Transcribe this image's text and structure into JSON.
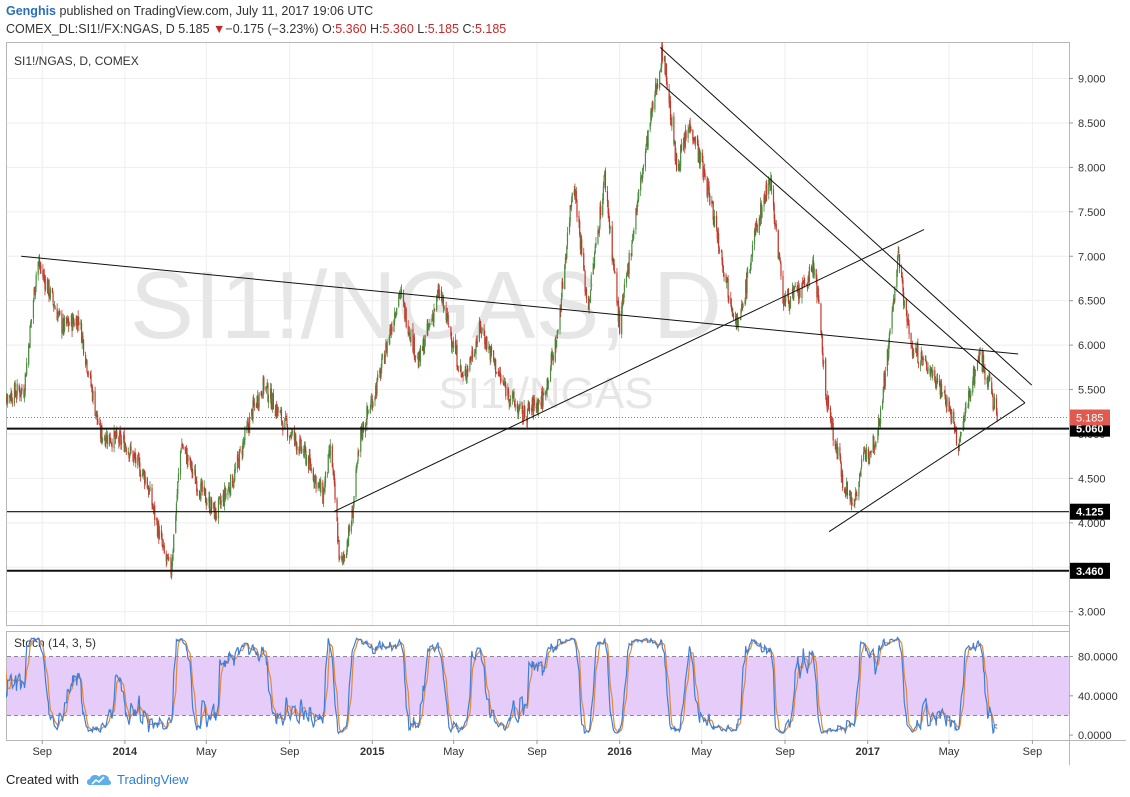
{
  "header": {
    "author": "Genghis",
    "published_text": "published on TradingView.com, July 11, 2017 19:06 UTC",
    "symbol": "COMEX_DL:SI1!/FX:NGAS, D",
    "last": "5.185",
    "change_arrow": "▼",
    "change": "−0.175 (−3.23%)",
    "o_label": "O:",
    "o_val": "5.360",
    "h_label": "H:",
    "h_val": "5.360",
    "l_label": "L:",
    "l_val": "5.185",
    "c_label": "C:",
    "c_val": "5.185"
  },
  "pane_title": "SI1!/NGAS, D, COMEX",
  "watermark": {
    "big": "SI1!/NGAS, D",
    "small": "SI1!/NGAS"
  },
  "stoch_title": "Stoch (14, 3, 5)",
  "footer": {
    "created_with": "Created with",
    "brand": "TradingView"
  },
  "colors": {
    "up": "#4a8c3f",
    "down": "#c0392b",
    "line": "#111111",
    "price_tag": "#e05a4f",
    "stoch_k": "#3f7fd6",
    "stoch_d": "#e4893b",
    "stoch_band": "#e3c6f7"
  },
  "chart_data": {
    "type": "candlestick",
    "price_axis": {
      "min": 2.85,
      "max": 9.4,
      "ticks": [
        "9.000",
        "8.500",
        "8.000",
        "7.500",
        "7.000",
        "6.500",
        "6.000",
        "5.500",
        "5.000",
        "4.500",
        "4.000",
        "3.500",
        "3.000"
      ]
    },
    "stoch_axis": {
      "min": -5,
      "max": 105,
      "ticks": [
        "80.0000",
        "40.0000",
        "0.0000"
      ],
      "upper_band": 80,
      "lower_band": 20
    },
    "x_ticks": [
      "Sep",
      "2014",
      "May",
      "Sep",
      "2015",
      "May",
      "Sep",
      "2016",
      "May",
      "Sep",
      "2017",
      "May",
      "Sep"
    ],
    "x_ticks_bold": [
      "2014",
      "2015",
      "2016",
      "2017"
    ],
    "last_price": "5.185",
    "horizontal_levels": [
      "5.060",
      "4.125",
      "3.460"
    ],
    "price_path": [
      [
        "2013-07-01",
        5.4
      ],
      [
        "2013-08-05",
        5.5
      ],
      [
        "2013-08-25",
        6.95
      ],
      [
        "2013-10-01",
        6.2
      ],
      [
        "2013-10-25",
        6.3
      ],
      [
        "2013-11-25",
        5.0
      ],
      [
        "2014-01-01",
        4.9
      ],
      [
        "2014-02-01",
        4.5
      ],
      [
        "2014-03-01",
        3.6
      ],
      [
        "2014-03-10",
        3.46
      ],
      [
        "2014-03-25",
        4.9
      ],
      [
        "2014-04-20",
        4.4
      ],
      [
        "2014-05-15",
        4.1
      ],
      [
        "2014-06-10",
        4.5
      ],
      [
        "2014-07-10",
        5.3
      ],
      [
        "2014-07-25",
        5.55
      ],
      [
        "2014-08-25",
        5.1
      ],
      [
        "2014-09-25",
        4.75
      ],
      [
        "2014-10-20",
        4.3
      ],
      [
        "2014-11-01",
        4.85
      ],
      [
        "2014-11-15",
        3.46
      ],
      [
        "2014-12-01",
        4.0
      ],
      [
        "2014-12-15",
        5.0
      ],
      [
        "2015-01-10",
        5.6
      ],
      [
        "2015-02-10",
        6.6
      ],
      [
        "2015-03-10",
        5.8
      ],
      [
        "2015-04-10",
        6.6
      ],
      [
        "2015-05-15",
        5.6
      ],
      [
        "2015-06-10",
        6.2
      ],
      [
        "2015-07-10",
        5.6
      ],
      [
        "2015-08-10",
        5.2
      ],
      [
        "2015-09-10",
        5.4
      ],
      [
        "2015-10-01",
        6.1
      ],
      [
        "2015-10-25",
        7.9
      ],
      [
        "2015-11-15",
        6.4
      ],
      [
        "2015-12-10",
        7.9
      ],
      [
        "2016-01-01",
        6.2
      ],
      [
        "2016-01-25",
        7.5
      ],
      [
        "2016-02-15",
        8.5
      ],
      [
        "2016-03-05",
        9.35
      ],
      [
        "2016-03-25",
        8.0
      ],
      [
        "2016-04-15",
        8.5
      ],
      [
        "2016-05-15",
        7.6
      ],
      [
        "2016-06-10",
        6.6
      ],
      [
        "2016-06-25",
        6.2
      ],
      [
        "2016-07-20",
        7.3
      ],
      [
        "2016-08-10",
        7.9
      ],
      [
        "2016-08-30",
        6.5
      ],
      [
        "2016-09-25",
        6.6
      ],
      [
        "2016-10-15",
        6.9
      ],
      [
        "2016-11-01",
        5.4
      ],
      [
        "2016-11-25",
        4.5
      ],
      [
        "2016-12-10",
        4.2
      ],
      [
        "2016-12-25",
        4.7
      ],
      [
        "2017-01-15",
        5.0
      ],
      [
        "2017-02-01",
        6.0
      ],
      [
        "2017-02-15",
        7.0
      ],
      [
        "2017-03-05",
        6.0
      ],
      [
        "2017-03-25",
        5.8
      ],
      [
        "2017-04-15",
        5.6
      ],
      [
        "2017-05-01",
        5.3
      ],
      [
        "2017-05-15",
        4.85
      ],
      [
        "2017-06-01",
        5.5
      ],
      [
        "2017-06-15",
        5.9
      ],
      [
        "2017-06-30",
        5.55
      ],
      [
        "2017-07-11",
        5.185
      ]
    ],
    "trend_lines": [
      {
        "name": "upper-descending-1",
        "from": [
          "2016-03-01",
          9.35
        ],
        "to": [
          "2017-08-31",
          5.55
        ]
      },
      {
        "name": "upper-descending-2",
        "from": [
          "2016-03-01",
          8.95
        ],
        "to": [
          "2017-08-21",
          5.35
        ]
      },
      {
        "name": "long-descending",
        "from": [
          "2013-08-01",
          7.0
        ],
        "to": [
          "2017-08-11",
          5.9
        ]
      },
      {
        "name": "ascending-from-2014",
        "from": [
          "2014-11-05",
          4.125
        ],
        "to": [
          "2017-03-25",
          7.3
        ]
      },
      {
        "name": "ascending-from-2016",
        "from": [
          "2016-11-05",
          3.9
        ],
        "to": [
          "2017-08-21",
          5.35
        ]
      }
    ]
  }
}
